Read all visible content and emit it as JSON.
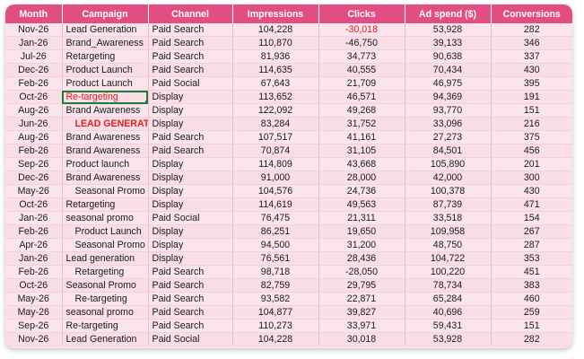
{
  "table": {
    "headers": [
      "Month",
      "Campaign",
      "Channel",
      "Impressions",
      "Clicks",
      "Ad spend ($)",
      "Conversions"
    ],
    "rows": [
      {
        "month": "Nov-26",
        "campaign": "Lead Generation",
        "channel": "Paid Search",
        "impressions": "104,228",
        "clicks": "-30,018",
        "spend": "53,928",
        "conversions": "282"
      },
      {
        "month": "Jan-26",
        "campaign": "Brand_Awareness",
        "channel": "Paid Search",
        "impressions": "110,870",
        "clicks": "-46,750",
        "spend": "39,133",
        "conversions": "346"
      },
      {
        "month": "Jul-26",
        "campaign": "Retargeting",
        "channel": "Paid Search",
        "impressions": "81,936",
        "clicks": "34,773",
        "spend": "90,638",
        "conversions": "337"
      },
      {
        "month": "Dec-26",
        "campaign": "Product Launch",
        "channel": "Paid Search",
        "impressions": "114,635",
        "clicks": "40,555",
        "spend": "70,434",
        "conversions": "430"
      },
      {
        "month": "Feb-26",
        "campaign": "Product Launch",
        "channel": "Paid Social",
        "impressions": "67,643",
        "clicks": "21,709",
        "spend": "46,975",
        "conversions": "395"
      },
      {
        "month": "Oct-26",
        "campaign": "Re-targeting",
        "channel": "Display",
        "impressions": "113,652",
        "clicks": "46,571",
        "spend": "94,369",
        "conversions": "191"
      },
      {
        "month": "Aug-26",
        "campaign": "Brand Awareness",
        "channel": "Display",
        "impressions": "122,092",
        "clicks": "49,268",
        "spend": "93,770",
        "conversions": "151"
      },
      {
        "month": "Jun-26",
        "campaign": "LEAD GENERATIO",
        "channel": "Display",
        "impressions": "83,284",
        "clicks": "31,752",
        "spend": "33,096",
        "conversions": "216"
      },
      {
        "month": "Aug-26",
        "campaign": "Brand Awareness",
        "channel": "Paid Search",
        "impressions": "107,517",
        "clicks": "41,161",
        "spend": "27,273",
        "conversions": "375"
      },
      {
        "month": "Feb-26",
        "campaign": "Brand Awareness",
        "channel": "Paid Search",
        "impressions": "70,874",
        "clicks": "31,105",
        "spend": "84,501",
        "conversions": "456"
      },
      {
        "month": "Sep-26",
        "campaign": "Product launch",
        "channel": "Display",
        "impressions": "114,809",
        "clicks": "43,668",
        "spend": "105,890",
        "conversions": "201"
      },
      {
        "month": "Dec-26",
        "campaign": "Brand Awareness",
        "channel": "Display",
        "impressions": "91,000",
        "clicks": "28,000",
        "spend": "42,000",
        "conversions": "300"
      },
      {
        "month": "May-26",
        "campaign": "Seasonal Promo",
        "channel": "Display",
        "impressions": "104,576",
        "clicks": "24,736",
        "spend": "100,378",
        "conversions": "430"
      },
      {
        "month": "Oct-26",
        "campaign": "Retargeting",
        "channel": "Display",
        "impressions": "114,619",
        "clicks": "49,563",
        "spend": "87,739",
        "conversions": "471"
      },
      {
        "month": "Jan-26",
        "campaign": "seasonal promo",
        "channel": "Paid Social",
        "impressions": "76,475",
        "clicks": "21,311",
        "spend": "33,518",
        "conversions": "154"
      },
      {
        "month": "Feb-26",
        "campaign": "Product Launch",
        "channel": "Display",
        "impressions": "86,251",
        "clicks": "19,650",
        "spend": "109,958",
        "conversions": "267"
      },
      {
        "month": "Apr-26",
        "campaign": "Seasonal Promo",
        "channel": "Display",
        "impressions": "94,500",
        "clicks": "31,200",
        "spend": "48,750",
        "conversions": "287"
      },
      {
        "month": "Jan-26",
        "campaign": "Lead generation",
        "channel": "Display",
        "impressions": "76,561",
        "clicks": "28,436",
        "spend": "104,722",
        "conversions": "353"
      },
      {
        "month": "Feb-26",
        "campaign": "Retargeting",
        "channel": "Paid Search",
        "impressions": "98,718",
        "clicks": "-28,050",
        "spend": "100,220",
        "conversions": "451"
      },
      {
        "month": "Oct-26",
        "campaign": "Seasonal Promo",
        "channel": "Paid Search",
        "impressions": "82,759",
        "clicks": "29,795",
        "spend": "78,734",
        "conversions": "383"
      },
      {
        "month": "May-26",
        "campaign": "Re-targeting",
        "channel": "Paid Search",
        "impressions": "93,582",
        "clicks": "22,871",
        "spend": "65,284",
        "conversions": "460"
      },
      {
        "month": "May-26",
        "campaign": "seasonal promo",
        "channel": "Paid Search",
        "impressions": "104,877",
        "clicks": "39,827",
        "spend": "40,696",
        "conversions": "259"
      },
      {
        "month": "Sep-26",
        "campaign": "Re-targeting",
        "channel": "Paid Search",
        "impressions": "110,273",
        "clicks": "33,971",
        "spend": "59,431",
        "conversions": "151"
      },
      {
        "month": "Nov-26",
        "campaign": "Lead Generation",
        "channel": "Paid Social",
        "impressions": "104,228",
        "clicks": "30,018",
        "spend": "53,928",
        "conversions": "282"
      }
    ]
  },
  "colors": {
    "header_bg": "#e24e83",
    "row_bg": "#fbe4ec",
    "highlight_text": "#e02020",
    "selection_border": "#1f7a3f"
  }
}
